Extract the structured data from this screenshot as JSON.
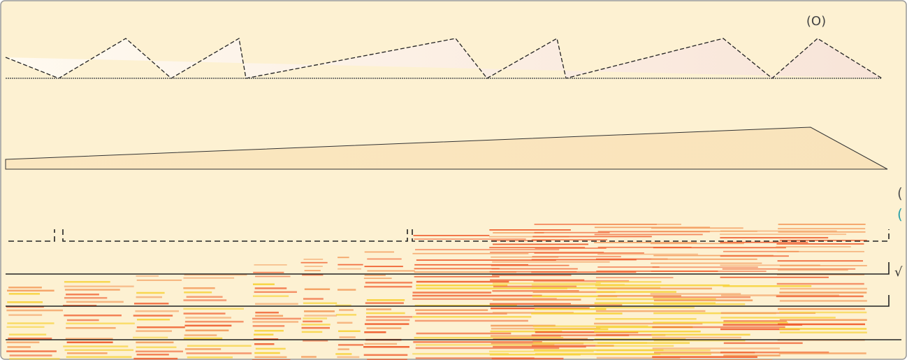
{
  "labels": {
    "top_marker": "(O)",
    "right_marker_1": "(",
    "right_marker_2": "(",
    "check": "√"
  }
}
